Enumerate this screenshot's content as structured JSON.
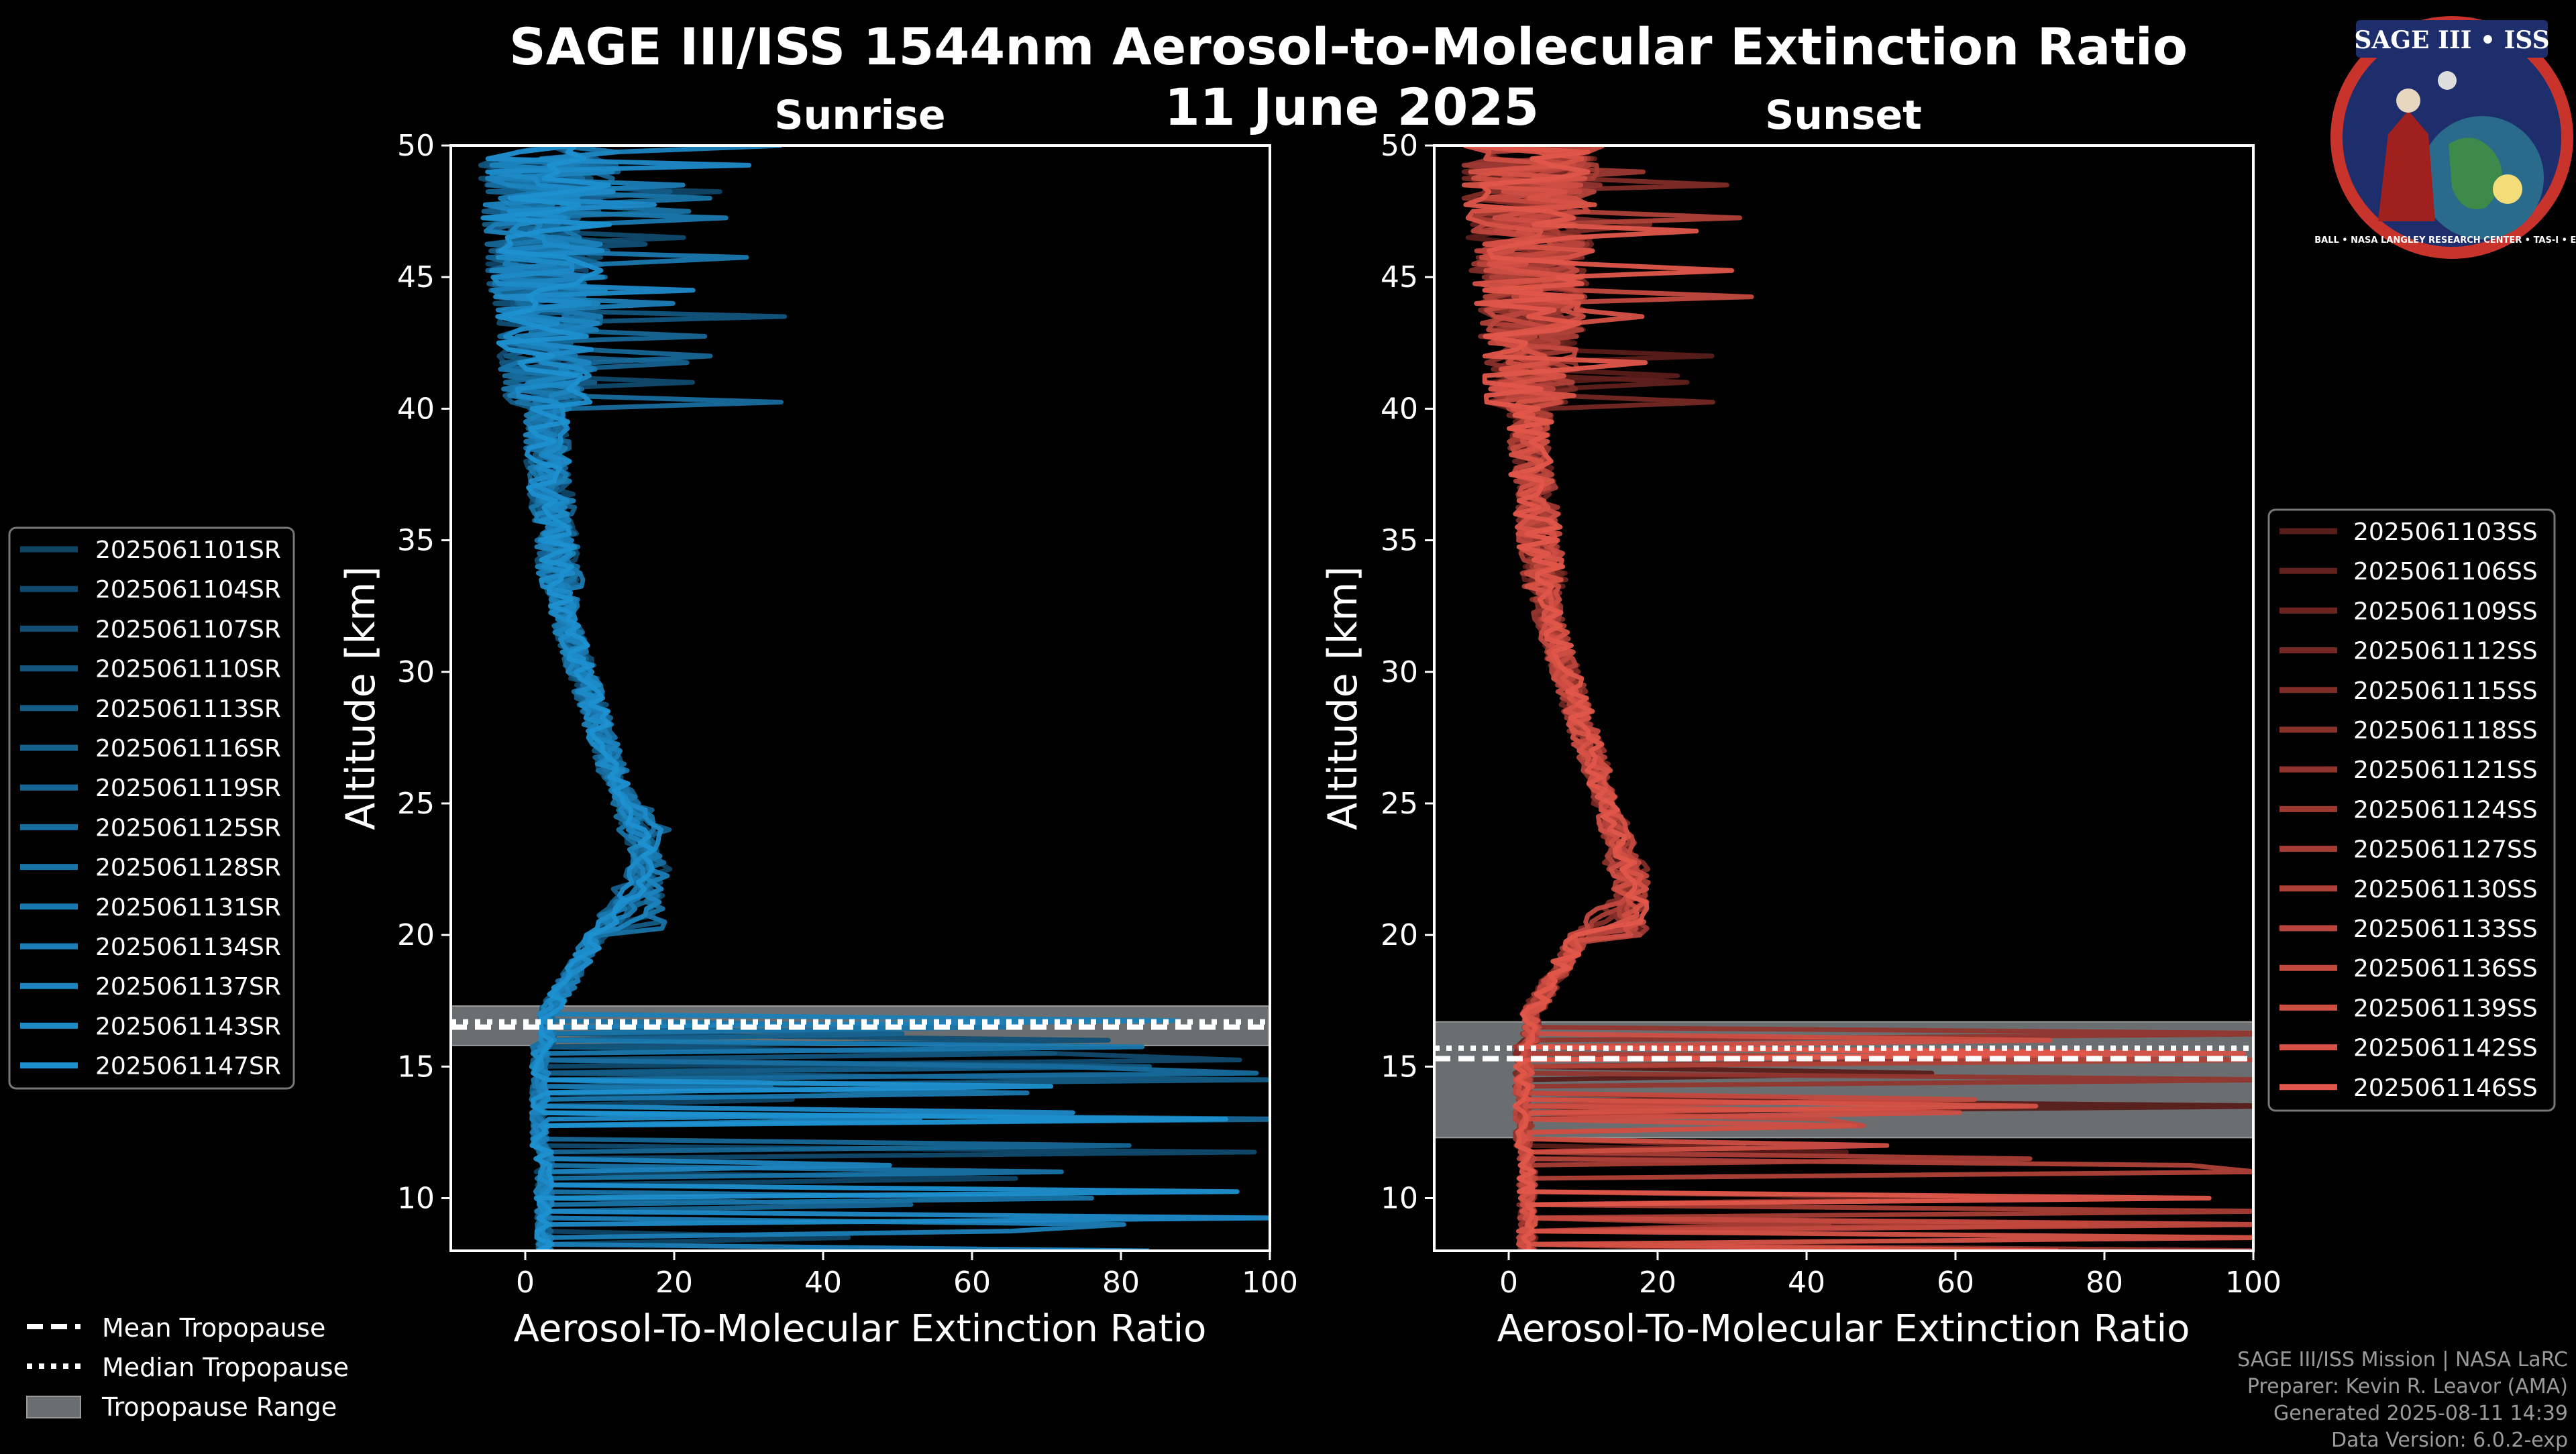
{
  "title_line1": "SAGE III/ISS 1544nm Aerosol-to-Molecular Extinction Ratio",
  "title_line2": "11 June 2025",
  "logo": {
    "text": "SAGE III • ISS",
    "ring_text": "BALL • NASA LANGLEY RESEARCH CENTER • TAS-I • ESA"
  },
  "colors": {
    "sunrise": "#1e90d0",
    "sunset": "#e0564a",
    "tropopause_band": "#6b6e70",
    "background": "#000000"
  },
  "chart_data": [
    {
      "type": "line",
      "title": "Sunrise",
      "xlabel": "Aerosol-To-Molecular Extinction Ratio",
      "ylabel": "Altitude [km]",
      "xlim": [
        -10,
        100
      ],
      "ylim": [
        8,
        50
      ],
      "xticks": [
        0,
        20,
        40,
        60,
        80,
        100
      ],
      "yticks": [
        10,
        15,
        20,
        25,
        30,
        35,
        40,
        45,
        50
      ],
      "tropopause": {
        "mean": 16.5,
        "median": 16.7,
        "range": [
          15.8,
          17.3
        ]
      },
      "legend_position": "left",
      "series": [
        {
          "name": "2025061101SR",
          "peak": 22.5
        },
        {
          "name": "2025061104SR",
          "peak": 21.0
        },
        {
          "name": "2025061107SR",
          "peak": 23.0
        },
        {
          "name": "2025061110SR",
          "peak": 22.0
        },
        {
          "name": "2025061113SR",
          "peak": 20.5
        },
        {
          "name": "2025061116SR",
          "peak": 24.0
        },
        {
          "name": "2025061119SR",
          "peak": 21.5
        },
        {
          "name": "2025061125SR",
          "peak": 22.8
        },
        {
          "name": "2025061128SR",
          "peak": 20.0
        },
        {
          "name": "2025061131SR",
          "peak": 23.5
        },
        {
          "name": "2025061134SR",
          "peak": 22.2
        },
        {
          "name": "2025061137SR",
          "peak": 21.2
        },
        {
          "name": "2025061143SR",
          "peak": 23.8
        },
        {
          "name": "2025061147SR",
          "peak": 22.6
        }
      ]
    },
    {
      "type": "line",
      "title": "Sunset",
      "xlabel": "Aerosol-To-Molecular Extinction Ratio",
      "ylabel": "Altitude [km]",
      "xlim": [
        -10,
        100
      ],
      "ylim": [
        8,
        50
      ],
      "xticks": [
        0,
        20,
        40,
        60,
        80,
        100
      ],
      "yticks": [
        10,
        15,
        20,
        25,
        30,
        35,
        40,
        45,
        50
      ],
      "tropopause": {
        "mean": 15.3,
        "median": 15.7,
        "range": [
          12.3,
          16.7
        ]
      },
      "legend_position": "right",
      "series": [
        {
          "name": "2025061103SS",
          "peak": 20.0
        },
        {
          "name": "2025061106SS",
          "peak": 18.0
        },
        {
          "name": "2025061109SS",
          "peak": 21.0
        },
        {
          "name": "2025061112SS",
          "peak": 19.0
        },
        {
          "name": "2025061115SS",
          "peak": 22.0
        },
        {
          "name": "2025061118SS",
          "peak": 17.5
        },
        {
          "name": "2025061121SS",
          "peak": 20.5
        },
        {
          "name": "2025061124SS",
          "peak": 19.5
        },
        {
          "name": "2025061127SS",
          "peak": 21.5
        },
        {
          "name": "2025061130SS",
          "peak": 18.5
        },
        {
          "name": "2025061133SS",
          "peak": 20.0
        },
        {
          "name": "2025061136SS",
          "peak": 22.5
        },
        {
          "name": "2025061139SS",
          "peak": 19.0
        },
        {
          "name": "2025061142SS",
          "peak": 21.0
        },
        {
          "name": "2025061146SS",
          "peak": 20.5
        }
      ]
    }
  ],
  "tropopause_legend": [
    "Mean Tropopause",
    "Median Tropopause",
    "Tropopause Range"
  ],
  "footer": {
    "mission": "SAGE III/ISS Mission | NASA LaRC",
    "preparer": "Preparer: Kevin R. Leavor (AMA)",
    "generated": "Generated 2025-08-11 14:39",
    "version": "Data Version: 6.0.2-exp"
  }
}
